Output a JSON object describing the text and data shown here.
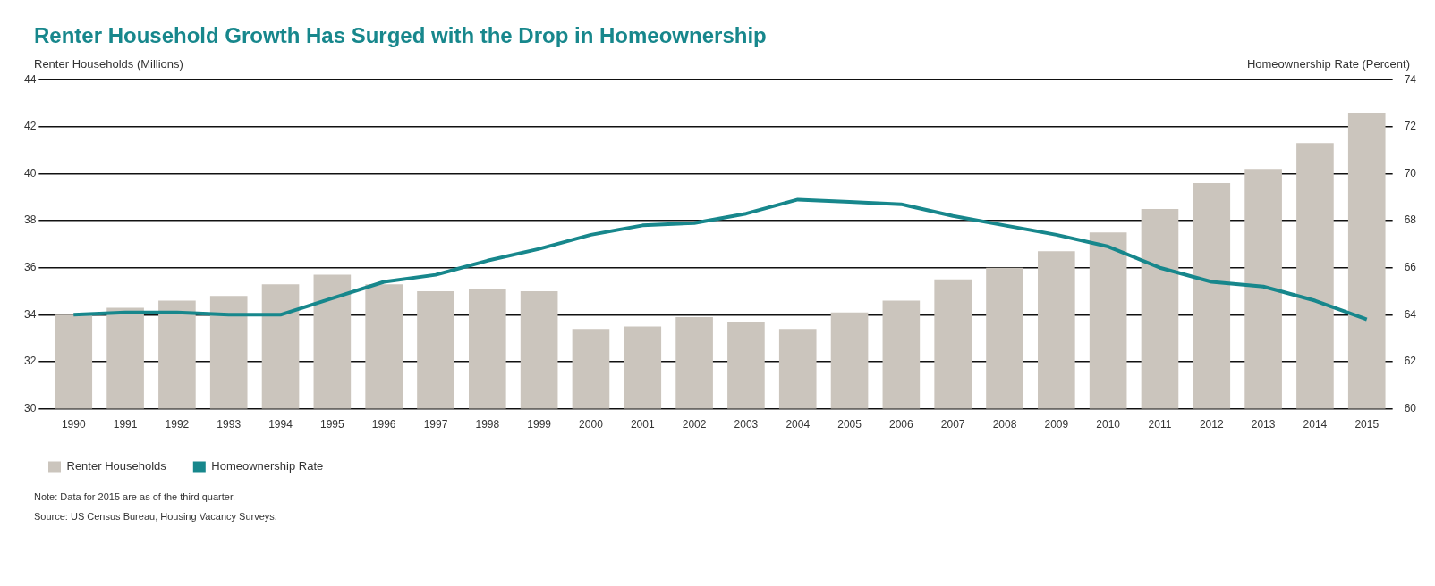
{
  "chart_data": {
    "type": "bar",
    "title": "Renter Household Growth Has Surged with the Drop in Homeownership",
    "ylabel": "Renter Households (Millions)",
    "y2label": "Homeownership Rate (Percent)",
    "categories": [
      "1990",
      "1991",
      "1992",
      "1993",
      "1994",
      "1995",
      "1996",
      "1997",
      "1998",
      "1999",
      "2000",
      "2001",
      "2002",
      "2003",
      "2004",
      "2005",
      "2006",
      "2007",
      "2008",
      "2009",
      "2010",
      "2011",
      "2012",
      "2013",
      "2014",
      "2015"
    ],
    "series": [
      {
        "name": "Renter Households",
        "color": "#cbc5bd",
        "values": [
          34.0,
          34.3,
          34.6,
          34.8,
          35.3,
          35.7,
          35.3,
          35.0,
          35.1,
          35.0,
          33.4,
          33.5,
          33.9,
          33.7,
          33.4,
          34.1,
          34.6,
          35.5,
          36.0,
          36.7,
          37.5,
          38.5,
          39.6,
          40.2,
          41.3,
          42.6
        ]
      },
      {
        "name": "Homeownership Rate",
        "type": "line",
        "axis": "y2",
        "color": "#17878c",
        "values": [
          64.0,
          64.1,
          64.1,
          64.0,
          64.0,
          64.7,
          65.4,
          65.7,
          66.3,
          66.8,
          67.4,
          67.8,
          67.9,
          68.3,
          68.9,
          68.8,
          68.7,
          68.2,
          67.8,
          67.4,
          66.9,
          66.0,
          65.4,
          65.2,
          64.6,
          63.8
        ]
      }
    ],
    "ylim": [
      30,
      44
    ],
    "yticks": [
      30,
      32,
      34,
      36,
      38,
      40,
      42,
      44
    ],
    "y2lim": [
      60,
      74
    ],
    "y2ticks": [
      60,
      62,
      64,
      66,
      68,
      70,
      72,
      74
    ],
    "grid": "y",
    "legend": "bottom left",
    "annotations": [
      "Note: Data for 2015 are as of the third quarter.",
      "Source: US Census Bureau, Housing Vacancy Surveys."
    ]
  }
}
